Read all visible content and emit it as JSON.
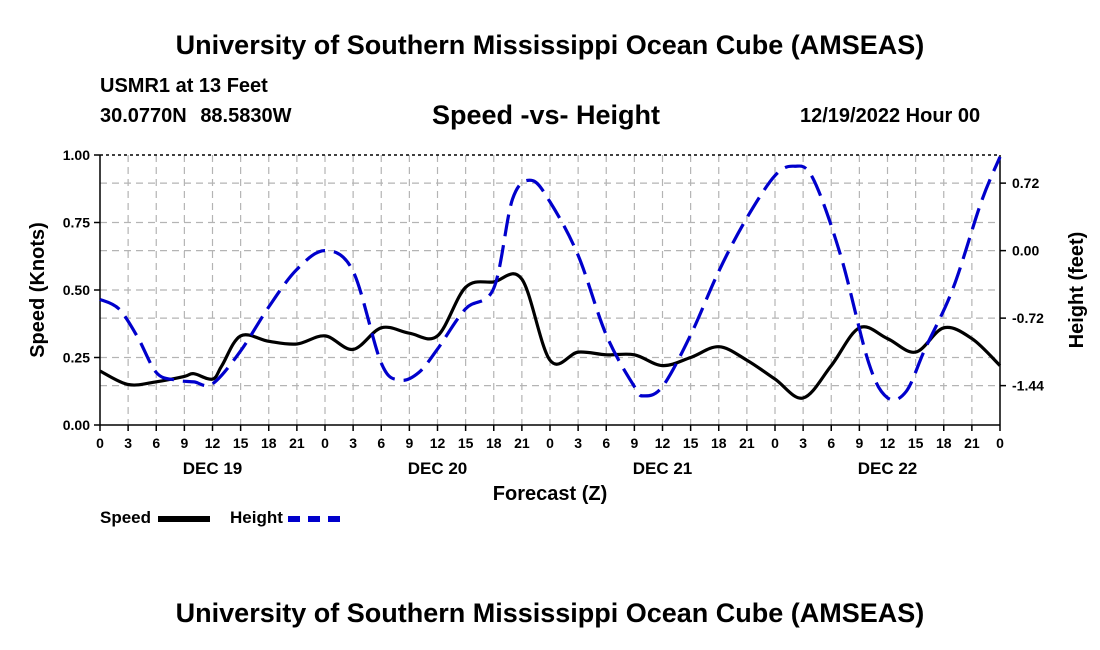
{
  "header": {
    "main_title": "University of Southern Mississippi Ocean Cube (AMSEAS)",
    "station_label": "USMR1 at 13 Feet",
    "latitude": "30.0770N",
    "longitude": "88.5830W",
    "run_time": "12/19/2022 Hour 00"
  },
  "footer": {
    "repeated_title": "University of Southern Mississippi Ocean Cube (AMSEAS)"
  },
  "legend": {
    "speed_label": "Speed",
    "height_label": "Height"
  },
  "colors": {
    "speed": "#000000",
    "height": "#0000cc",
    "grid": "#b4b4b4"
  },
  "chart_data": {
    "type": "line",
    "title": "Speed -vs- Height",
    "xlabel": "Forecast (Z)",
    "ylabel": "Speed (Knots)",
    "y2label": "Height (feet)",
    "xlim": [
      0,
      96
    ],
    "ylim": [
      0,
      1
    ],
    "y2lim": [
      -1.86,
      1.02
    ],
    "x_ticks": [
      0,
      3,
      6,
      9,
      12,
      15,
      18,
      21,
      24,
      27,
      30,
      33,
      36,
      39,
      42,
      45,
      48,
      51,
      54,
      57,
      60,
      63,
      66,
      69,
      72,
      75,
      78,
      81,
      84,
      87,
      90,
      93,
      96
    ],
    "x_tick_labels": [
      "0",
      "3",
      "6",
      "9",
      "12",
      "15",
      "18",
      "21",
      "0",
      "3",
      "6",
      "9",
      "12",
      "15",
      "18",
      "21",
      "0",
      "3",
      "6",
      "9",
      "12",
      "15",
      "18",
      "21",
      "0",
      "3",
      "6",
      "9",
      "12",
      "15",
      "18",
      "21",
      "0"
    ],
    "y_ticks": [
      0,
      0.25,
      0.5,
      0.75,
      1.0
    ],
    "y_tick_labels": [
      "0.00",
      "0.25",
      "0.50",
      "0.75",
      "1.00"
    ],
    "y2_ticks": [
      -1.44,
      -0.72,
      0.0,
      0.72
    ],
    "y2_tick_labels": [
      "-1.44",
      "-0.72",
      "0.00",
      "0.72"
    ],
    "day_labels": [
      {
        "x": 12,
        "label": "DEC 19"
      },
      {
        "x": 36,
        "label": "DEC 20"
      },
      {
        "x": 60,
        "label": "DEC 21"
      },
      {
        "x": 84,
        "label": "DEC 22"
      }
    ],
    "series": [
      {
        "name": "Speed",
        "axis": "left",
        "style": "solid",
        "x": [
          0,
          3,
          6,
          9,
          10,
          12,
          13,
          15,
          18,
          21,
          24,
          27,
          30,
          33,
          36,
          39,
          42,
          45,
          48,
          51,
          54,
          57,
          60,
          63,
          66,
          69,
          72,
          75,
          78,
          81,
          84,
          87,
          90,
          93,
          96
        ],
        "values": [
          0.2,
          0.15,
          0.16,
          0.18,
          0.19,
          0.17,
          0.22,
          0.33,
          0.31,
          0.3,
          0.33,
          0.28,
          0.36,
          0.34,
          0.33,
          0.51,
          0.53,
          0.54,
          0.24,
          0.27,
          0.26,
          0.26,
          0.22,
          0.25,
          0.29,
          0.24,
          0.17,
          0.1,
          0.22,
          0.36,
          0.32,
          0.27,
          0.36,
          0.32,
          0.22
        ]
      },
      {
        "name": "Height",
        "axis": "right",
        "style": "dashed",
        "x": [
          0,
          2,
          4,
          6,
          8,
          10,
          12,
          15,
          18,
          21,
          24,
          27,
          30,
          32,
          34,
          36,
          39,
          42,
          44,
          46,
          48,
          51,
          54,
          57,
          58,
          60,
          63,
          66,
          69,
          72,
          74,
          76,
          79,
          82,
          84,
          86,
          88,
          91,
          94,
          96
        ],
        "values": [
          -0.52,
          -0.62,
          -0.92,
          -1.3,
          -1.38,
          -1.4,
          -1.42,
          -1.07,
          -0.6,
          -0.2,
          0.0,
          -0.22,
          -1.2,
          -1.38,
          -1.3,
          -1.05,
          -0.62,
          -0.4,
          0.55,
          0.75,
          0.52,
          -0.05,
          -0.9,
          -1.45,
          -1.55,
          -1.45,
          -0.9,
          -0.22,
          0.35,
          0.8,
          0.9,
          0.78,
          -0.05,
          -1.2,
          -1.57,
          -1.5,
          -1.05,
          -0.4,
          0.52,
          1.0
        ]
      }
    ]
  }
}
